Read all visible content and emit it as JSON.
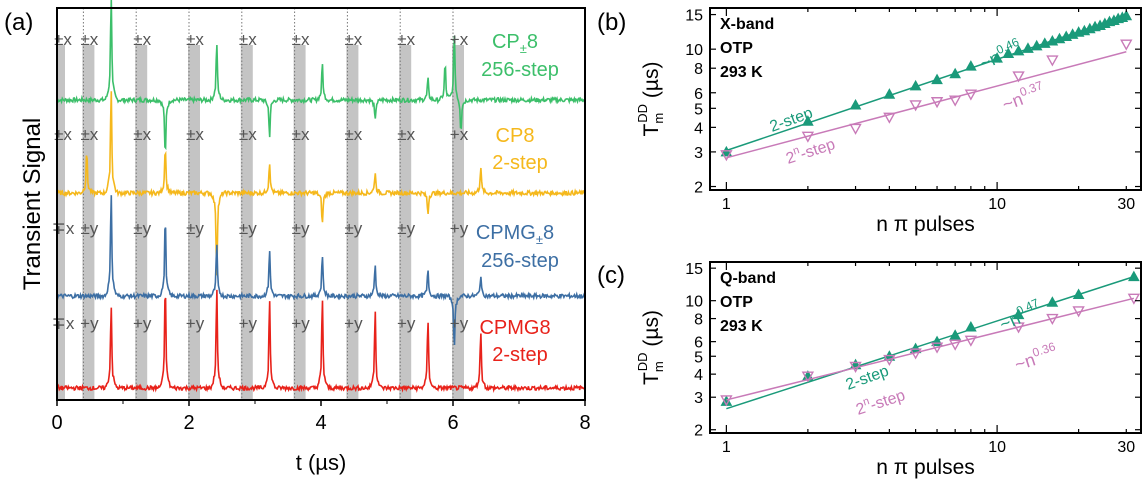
{
  "chart_data": [
    {
      "panel": "(a)",
      "type": "line",
      "xlabel": "t (µs)",
      "ylabel": "Transient Signal",
      "xlim": [
        0,
        8
      ],
      "xticks": [
        "0",
        "2",
        "4",
        "6",
        "8"
      ],
      "grid": false,
      "pulse_times_us": [
        0,
        0.4,
        1.2,
        2.0,
        2.8,
        3.6,
        4.4,
        5.2,
        6.0
      ],
      "traces": [
        {
          "label": "CP±8",
          "label_main": "CP",
          "label_sub": "±",
          "label_tail": "8",
          "label2": "256-step",
          "color": "#3cbf6a",
          "phases": [
            "±x",
            "±x",
            "±x",
            "±x",
            "±x",
            "±x",
            "±x",
            "±x",
            "+x"
          ],
          "peaks": [
            {
              "t": 0.82,
              "a": 1.0
            },
            {
              "t": 1.64,
              "a": -0.55
            },
            {
              "t": 2.42,
              "a": 0.55
            },
            {
              "t": 3.22,
              "a": -0.35
            },
            {
              "t": 4.02,
              "a": 0.35
            },
            {
              "t": 4.82,
              "a": -0.2
            },
            {
              "t": 5.62,
              "a": 0.2
            },
            {
              "t": 5.88,
              "a": 0.35
            },
            {
              "t": 6.02,
              "a": 0.65
            },
            {
              "t": 6.12,
              "a": -0.3
            }
          ]
        },
        {
          "label": "CP8",
          "label_main": "CP8",
          "label_sub": "",
          "label_tail": "",
          "label2": "2-step",
          "color": "#f5b81c",
          "phases": [
            "±x",
            "±x",
            "±x",
            "±x",
            "±x",
            "±x",
            "±x",
            "±x",
            "+x"
          ],
          "peaks": [
            {
              "t": 0.45,
              "a": 0.4
            },
            {
              "t": 0.82,
              "a": 1.0
            },
            {
              "t": 1.64,
              "a": 0.45
            },
            {
              "t": 2.42,
              "a": -0.8
            },
            {
              "t": 3.22,
              "a": 0.3
            },
            {
              "t": 4.02,
              "a": -0.3
            },
            {
              "t": 4.82,
              "a": 0.2
            },
            {
              "t": 5.62,
              "a": -0.2
            },
            {
              "t": 6.42,
              "a": 0.25
            }
          ]
        },
        {
          "label": "CPMG±8",
          "label_main": "CPMG",
          "label_sub": "±",
          "label_tail": "8",
          "label2": "256-step",
          "color": "#3d6fa4",
          "phases": [
            "∓x",
            "±y",
            "±y",
            "±y",
            "±y",
            "±y",
            "±y",
            "±y",
            "+y"
          ],
          "peaks": [
            {
              "t": 0.82,
              "a": 1.0
            },
            {
              "t": 1.64,
              "a": 0.75
            },
            {
              "t": 2.42,
              "a": 0.5
            },
            {
              "t": 3.22,
              "a": 0.45
            },
            {
              "t": 4.02,
              "a": 0.4
            },
            {
              "t": 4.82,
              "a": 0.3
            },
            {
              "t": 5.62,
              "a": 0.25
            },
            {
              "t": 6.02,
              "a": -0.5
            },
            {
              "t": 6.42,
              "a": 0.2
            }
          ]
        },
        {
          "label": "CPMG8",
          "label_main": "CPMG8",
          "label_sub": "",
          "label_tail": "",
          "label2": "2-step",
          "color": "#e8221a",
          "phases": [
            "∓x",
            "+y",
            "+y",
            "+y",
            "+y",
            "+y",
            "+y",
            "+y",
            "+y"
          ],
          "peaks": [
            {
              "t": 0.82,
              "a": 0.8
            },
            {
              "t": 1.64,
              "a": 1.0
            },
            {
              "t": 2.42,
              "a": 0.95
            },
            {
              "t": 3.22,
              "a": 0.85
            },
            {
              "t": 4.02,
              "a": 0.85
            },
            {
              "t": 4.82,
              "a": 0.75
            },
            {
              "t": 5.62,
              "a": 0.65
            },
            {
              "t": 6.42,
              "a": 0.55
            }
          ]
        }
      ]
    },
    {
      "panel": "(b)",
      "type": "scatter",
      "xscale": "log",
      "yscale": "log",
      "xlabel": "n π pulses",
      "ylabel": "T_m^DD (µs)",
      "ylabel_main": "T",
      "ylabel_sub": "m",
      "ylabel_sup": "DD",
      "ylabel_unit": "(µs)",
      "xlim": [
        0.87,
        34
      ],
      "ylim": [
        1.92,
        16.2
      ],
      "xticks": [
        1,
        10,
        30
      ],
      "yticks": [
        2,
        3,
        4,
        5,
        6,
        8,
        10,
        15
      ],
      "info": [
        "X-band",
        "OTP",
        "293 K"
      ],
      "series": [
        {
          "name": "2-step",
          "marker": "filled-triangle-up",
          "color": "#1a9a7a",
          "x": [
            1,
            2,
            3,
            4,
            5,
            6,
            7,
            8,
            10,
            11,
            12,
            13,
            14,
            15,
            16,
            17,
            18,
            19,
            20,
            21,
            22,
            23,
            24,
            25,
            26,
            27,
            28,
            29,
            30
          ],
          "y": [
            3.0,
            4.3,
            5.2,
            5.9,
            6.5,
            7.0,
            7.5,
            8.2,
            9.0,
            9.5,
            9.8,
            10.1,
            10.4,
            10.7,
            11.0,
            11.3,
            11.6,
            11.9,
            12.2,
            12.4,
            12.7,
            13.0,
            13.2,
            13.5,
            13.8,
            14.0,
            14.3,
            14.5,
            14.8
          ],
          "fit_label": "~n",
          "fit_exp": "0.46",
          "fit_x": [
            1,
            30
          ],
          "fit_y": [
            3.05,
            14.8
          ]
        },
        {
          "name": "2ⁿ-step",
          "label_main": "2",
          "label_sup": "n",
          "label_tail": "-step",
          "marker": "open-triangle-down",
          "color": "#c87ab8",
          "x": [
            1,
            2,
            3,
            4,
            5,
            6,
            7,
            8,
            12,
            16,
            30
          ],
          "y": [
            2.9,
            3.6,
            3.95,
            4.5,
            5.2,
            5.4,
            5.5,
            5.9,
            7.3,
            8.8,
            10.6
          ],
          "fit_label": "~n",
          "fit_exp": "0.37",
          "fit_x": [
            1,
            30
          ],
          "fit_y": [
            2.8,
            9.7
          ]
        }
      ]
    },
    {
      "panel": "(c)",
      "type": "scatter",
      "xscale": "log",
      "yscale": "log",
      "xlabel": "n π pulses",
      "ylabel": "T_m^DD (µs)",
      "ylabel_main": "T",
      "ylabel_sub": "m",
      "ylabel_sup": "DD",
      "ylabel_unit": "(µs)",
      "xlim": [
        0.87,
        34
      ],
      "ylim": [
        1.92,
        16.2
      ],
      "xticks": [
        1,
        10,
        30
      ],
      "yticks": [
        2,
        3,
        4,
        5,
        6,
        8,
        10,
        15
      ],
      "info": [
        "Q-band",
        "OTP",
        "293 K"
      ],
      "series": [
        {
          "name": "2-step",
          "marker": "filled-triangle-up",
          "color": "#1a9a7a",
          "x": [
            1,
            2,
            3,
            4,
            5,
            6,
            7,
            8,
            12,
            16,
            20,
            32
          ],
          "y": [
            2.85,
            3.9,
            4.5,
            5.0,
            5.5,
            6.0,
            6.5,
            7.2,
            8.4,
            9.8,
            10.8,
            13.5
          ],
          "fit_label": "~n",
          "fit_exp": "0.47",
          "fit_x": [
            1,
            32
          ],
          "fit_y": [
            2.6,
            13.5
          ]
        },
        {
          "name": "2ⁿ-step",
          "label_main": "2",
          "label_sup": "n",
          "label_tail": "-step",
          "marker": "open-triangle-down",
          "color": "#c87ab8",
          "x": [
            1,
            2,
            3,
            4,
            5,
            6,
            7,
            8,
            12,
            16,
            20,
            32
          ],
          "y": [
            2.9,
            3.9,
            4.4,
            4.8,
            5.2,
            5.6,
            5.8,
            6.1,
            7.2,
            8.0,
            8.8,
            10.3
          ],
          "fit_label": "~n",
          "fit_exp": "0.36",
          "fit_x": [
            1,
            32
          ],
          "fit_y": [
            2.9,
            10.3
          ]
        }
      ]
    }
  ]
}
